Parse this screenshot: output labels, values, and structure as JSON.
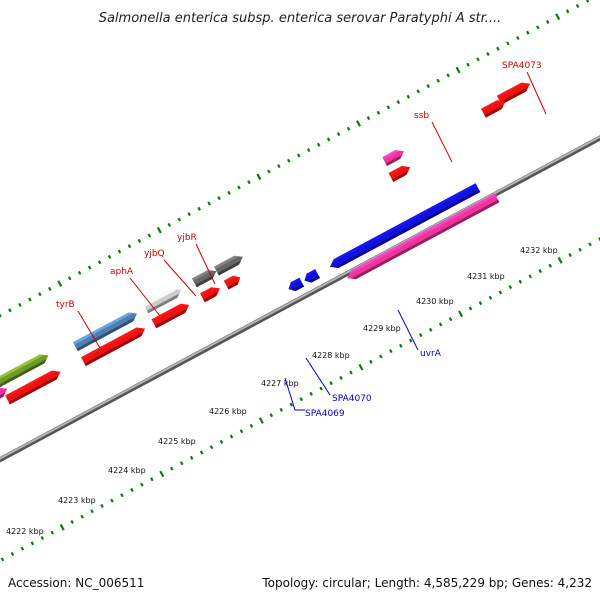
{
  "title": "Salmonella enterica subsp. enterica serovar Paratyphi A str....",
  "footer": {
    "accession": "Accession: NC_006511",
    "summary": "Topology: circular; Length: 4,585,229 bp; Genes: 4,232"
  },
  "scale": {
    "unit": "kbp",
    "ticks": [
      "4222 kbp",
      "4223 kbp",
      "4224 kbp",
      "4225 kbp",
      "4226 kbp",
      "4227 kbp",
      "4228 kbp",
      "4229 kbp",
      "4230 kbp",
      "4231 kbp",
      "4232 kbp"
    ]
  },
  "genes_forward": [
    {
      "name": "tyrB",
      "color": "#4f7fb2"
    },
    {
      "name": "aphA",
      "color": "#cccccc"
    },
    {
      "name": "yjbQ",
      "color": "#666666"
    },
    {
      "name": "yjbR",
      "color": "#666666"
    },
    {
      "name": "ssb",
      "color": "#ee3399"
    },
    {
      "name": "SPA4073",
      "color": "#ee1111"
    }
  ],
  "genes_reverse": [
    {
      "name": "SPA4069",
      "color": "#1111dd"
    },
    {
      "name": "SPA4070",
      "color": "#1111dd"
    },
    {
      "name": "uvrA",
      "color": "#1111dd"
    }
  ],
  "colors": {
    "forward_label": "#cc0000",
    "reverse_label": "#0000cc",
    "tick": "#0b7a0b",
    "backbone": "#888888",
    "cds": "#ee1111"
  }
}
